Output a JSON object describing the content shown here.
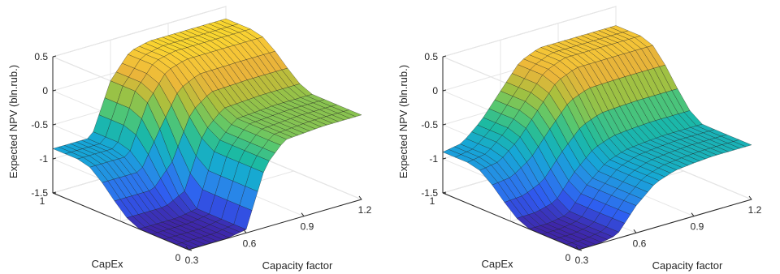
{
  "chart_data": [
    {
      "type": "surface",
      "panel": "left",
      "zlabel": "Expected NPV (bln.rub.)",
      "xlabel": "Capacity factor",
      "ylabel": "CapEx",
      "xticks": [
        "0.3",
        "0.6",
        "0.9",
        "1.2"
      ],
      "yticks": [
        "0",
        "1"
      ],
      "zticks": [
        "0.5",
        "0",
        "-0.5",
        "-1",
        "-1.5"
      ],
      "xlim": [
        0.3,
        1.2
      ],
      "ylim": [
        0,
        1
      ],
      "zlim": [
        -1.5,
        0.5
      ],
      "capacity_factor": [
        0.3,
        0.4,
        0.5,
        0.6,
        0.7,
        0.8,
        0.9,
        1.0,
        1.1,
        1.2
      ],
      "capex": [
        0,
        0.1,
        0.2,
        0.3,
        0.4,
        0.5,
        0.6,
        0.7,
        0.8,
        0.9,
        1.0
      ],
      "z_low_capex": [
        -1.5,
        -1.5,
        -1.5,
        -1.45,
        -0.6,
        -0.3,
        -0.28,
        -0.26,
        -0.26,
        -0.26
      ],
      "z_high_capex": [
        -0.85,
        -0.85,
        -0.85,
        -0.1,
        0.25,
        0.32,
        0.32,
        0.32,
        0.32,
        0.32
      ],
      "colormap": [
        "#3e26a8",
        "#2f5bf1",
        "#2888e8",
        "#16a7d6",
        "#1cbaa3",
        "#5cc86b",
        "#a9c03d",
        "#eab53a",
        "#f9cc35",
        "#f9fb15"
      ],
      "grid": true
    },
    {
      "type": "surface",
      "panel": "right",
      "zlabel": "Expected NPV (bln.rub.)",
      "xlabel": "Capacity factor",
      "ylabel": "CapEx",
      "xticks": [
        "0.3",
        "0.6",
        "0.9",
        "1.2"
      ],
      "yticks": [
        "0",
        "1"
      ],
      "zticks": [
        "0.5",
        "0",
        "-0.5",
        "-1",
        "-1.5"
      ],
      "xlim": [
        0.3,
        1.2
      ],
      "ylim": [
        0,
        1
      ],
      "zlim": [
        -1.5,
        0.5
      ],
      "capacity_factor": [
        0.3,
        0.4,
        0.5,
        0.6,
        0.7,
        0.8,
        0.9,
        1.0,
        1.1,
        1.2
      ],
      "capex": [
        0,
        0.1,
        0.2,
        0.3,
        0.4,
        0.5,
        0.6,
        0.7,
        0.8,
        0.9,
        1.0
      ],
      "z_low_capex": [
        -1.5,
        -1.5,
        -1.45,
        -1.1,
        -0.85,
        -0.75,
        -0.72,
        -0.7,
        -0.7,
        -0.7
      ],
      "z_high_capex": [
        -0.9,
        -0.85,
        -0.6,
        -0.25,
        0.1,
        0.22,
        0.22,
        0.22,
        0.22,
        0.22
      ],
      "colormap": [
        "#3e26a8",
        "#2f5bf1",
        "#2888e8",
        "#16a7d6",
        "#1cbaa3",
        "#5cc86b",
        "#a9c03d",
        "#eab53a",
        "#f9cc35",
        "#f9fb15"
      ],
      "grid": true
    }
  ]
}
